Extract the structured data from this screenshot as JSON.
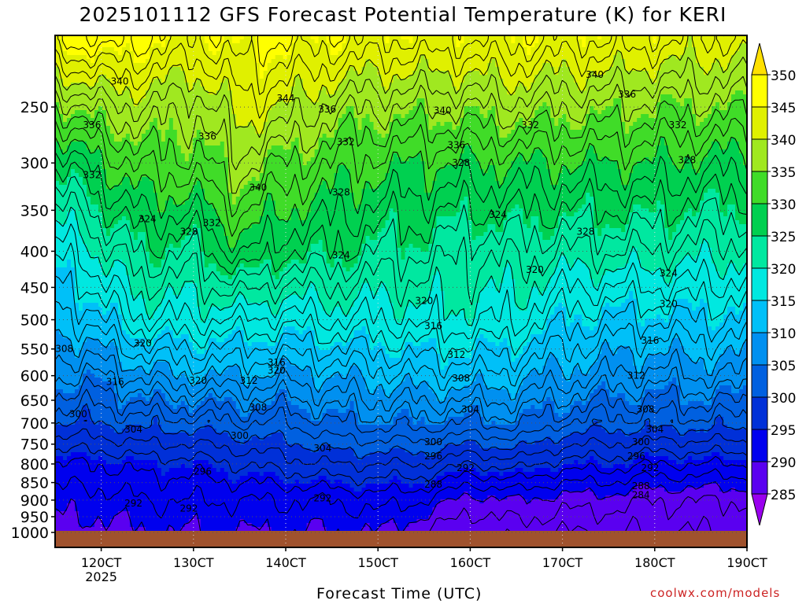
{
  "chart_data": {
    "type": "heatmap",
    "title": "2025101112 GFS Forecast Potential Temperature (K) for KERI",
    "xlabel": "Forecast Time (UTC)",
    "ylabel": "",
    "y_scale": "log",
    "y_reversed": true,
    "ylim": [
      1000,
      200
    ],
    "xlim": [
      11.5,
      19.0
    ],
    "x_tick_labels": [
      "120CT",
      "130CT",
      "140CT",
      "150CT",
      "160CT",
      "170CT",
      "180CT",
      "190CT"
    ],
    "x_tick_values": [
      12,
      13,
      14,
      15,
      16,
      17,
      18,
      19
    ],
    "x_sub_label": "2025",
    "y_ticks": [
      250,
      300,
      350,
      400,
      450,
      500,
      550,
      600,
      650,
      700,
      750,
      800,
      850,
      900,
      950,
      1000
    ],
    "x_grid": true,
    "y_grid": true,
    "colorbar": {
      "levels": [
        285,
        290,
        295,
        300,
        305,
        310,
        315,
        320,
        325,
        330,
        335,
        340,
        345,
        350
      ],
      "colors": [
        "#9a00ef",
        "#5a00f0",
        "#0000ee",
        "#0030d8",
        "#0060e0",
        "#0090f0",
        "#00c0f8",
        "#00e8e0",
        "#00e8a0",
        "#00d050",
        "#40dc28",
        "#a0e820",
        "#e0f000",
        "#ffff00",
        "#ffe000"
      ]
    },
    "ground_color": "#a0522d",
    "theta_profiles": [
      {
        "t": 11.5,
        "p": [
          1000,
          900,
          800,
          700,
          600,
          500,
          400,
          300,
          250,
          200
        ],
        "theta": [
          289,
          291,
          294,
          300,
          306,
          311,
          317,
          326,
          334,
          346
        ]
      },
      {
        "t": 11.8,
        "p": [
          1000,
          900,
          800,
          700,
          600,
          500,
          400,
          300,
          250,
          200
        ],
        "theta": [
          289,
          291,
          294,
          300,
          306,
          312,
          318,
          328,
          336,
          347
        ]
      },
      {
        "t": 12.0,
        "p": [
          1000,
          900,
          800,
          700,
          600,
          500,
          400,
          300,
          250,
          200
        ],
        "theta": [
          289,
          291,
          294,
          300,
          306,
          314,
          321,
          330,
          337,
          348
        ]
      },
      {
        "t": 12.5,
        "p": [
          1000,
          900,
          800,
          700,
          600,
          500,
          400,
          300,
          250,
          200
        ],
        "theta": [
          290,
          292,
          295,
          301,
          309,
          318,
          325,
          333,
          338,
          346
        ]
      },
      {
        "t": 13.0,
        "p": [
          1000,
          900,
          800,
          700,
          600,
          500,
          400,
          300,
          250,
          200
        ],
        "theta": [
          290,
          292,
          295,
          301,
          310,
          318,
          324,
          333,
          336,
          344
        ]
      },
      {
        "t": 13.5,
        "p": [
          1000,
          900,
          800,
          700,
          600,
          500,
          400,
          300,
          250,
          200
        ],
        "theta": [
          290,
          292,
          296,
          302,
          310,
          318,
          329,
          337,
          341,
          346
        ]
      },
      {
        "t": 14.0,
        "p": [
          1000,
          900,
          800,
          700,
          600,
          500,
          400,
          300,
          250,
          200
        ],
        "theta": [
          290,
          292,
          297,
          302,
          309,
          317,
          326,
          334,
          340,
          346
        ]
      },
      {
        "t": 14.5,
        "p": [
          1000,
          900,
          800,
          700,
          600,
          500,
          400,
          300,
          250,
          200
        ],
        "theta": [
          290,
          292,
          298,
          304,
          310,
          318,
          326,
          332,
          337,
          345
        ]
      },
      {
        "t": 15.0,
        "p": [
          1000,
          900,
          800,
          700,
          600,
          500,
          400,
          300,
          250,
          200
        ],
        "theta": [
          290,
          293,
          298,
          305,
          311,
          318,
          324,
          331,
          336,
          344
        ]
      },
      {
        "t": 15.5,
        "p": [
          1000,
          900,
          800,
          700,
          600,
          500,
          400,
          300,
          250,
          200
        ],
        "theta": [
          288,
          292,
          298,
          305,
          312,
          319,
          324,
          330,
          336,
          344
        ]
      },
      {
        "t": 16.0,
        "p": [
          1000,
          900,
          800,
          700,
          600,
          500,
          400,
          300,
          250,
          200
        ],
        "theta": [
          286,
          289,
          296,
          304,
          312,
          319,
          322,
          330,
          336,
          344
        ]
      },
      {
        "t": 16.5,
        "p": [
          1000,
          900,
          800,
          700,
          600,
          500,
          400,
          300,
          250,
          200
        ],
        "theta": [
          287,
          290,
          297,
          305,
          311,
          318,
          323,
          330,
          337,
          345
        ]
      },
      {
        "t": 17.0,
        "p": [
          1000,
          900,
          800,
          700,
          600,
          500,
          400,
          300,
          250,
          200
        ],
        "theta": [
          286,
          289,
          295,
          302,
          309,
          315,
          322,
          330,
          336,
          344
        ]
      },
      {
        "t": 17.5,
        "p": [
          1000,
          900,
          800,
          700,
          600,
          500,
          400,
          300,
          250,
          200
        ],
        "theta": [
          286,
          289,
          295,
          301,
          308,
          314,
          322,
          330,
          336,
          344
        ]
      },
      {
        "t": 18.0,
        "p": [
          1000,
          900,
          800,
          700,
          600,
          500,
          400,
          300,
          250,
          200
        ],
        "theta": [
          286,
          288,
          294,
          301,
          307,
          314,
          322,
          330,
          335,
          343
        ]
      },
      {
        "t": 18.5,
        "p": [
          1000,
          900,
          800,
          700,
          600,
          500,
          400,
          300,
          250,
          200
        ],
        "theta": [
          286,
          288,
          294,
          301,
          308,
          314,
          321,
          329,
          335,
          342
        ]
      },
      {
        "t": 19.0,
        "p": [
          1000,
          900,
          800,
          700,
          600,
          500,
          400,
          300,
          250,
          200
        ],
        "theta": [
          286,
          288,
          294,
          301,
          308,
          314,
          321,
          329,
          335,
          342
        ]
      }
    ],
    "contour_labels": [
      {
        "t": 12.2,
        "p": 230,
        "text": "340"
      },
      {
        "t": 11.9,
        "p": 265,
        "text": "336"
      },
      {
        "t": 11.9,
        "p": 312,
        "text": "332"
      },
      {
        "t": 12.5,
        "p": 360,
        "text": "324"
      },
      {
        "t": 12.95,
        "p": 375,
        "text": "328"
      },
      {
        "t": 13.2,
        "p": 365,
        "text": "332"
      },
      {
        "t": 13.15,
        "p": 275,
        "text": "336"
      },
      {
        "t": 13.7,
        "p": 325,
        "text": "340"
      },
      {
        "t": 14.0,
        "p": 243,
        "text": "344"
      },
      {
        "t": 14.45,
        "p": 252,
        "text": "336"
      },
      {
        "t": 14.65,
        "p": 280,
        "text": "332"
      },
      {
        "t": 14.6,
        "p": 330,
        "text": "328"
      },
      {
        "t": 14.6,
        "p": 405,
        "text": "324"
      },
      {
        "t": 12.45,
        "p": 540,
        "text": "320"
      },
      {
        "t": 11.6,
        "p": 550,
        "text": "308"
      },
      {
        "t": 12.15,
        "p": 612,
        "text": "316"
      },
      {
        "t": 11.75,
        "p": 680,
        "text": "300"
      },
      {
        "t": 12.35,
        "p": 715,
        "text": "304"
      },
      {
        "t": 13.05,
        "p": 610,
        "text": "320"
      },
      {
        "t": 13.9,
        "p": 590,
        "text": "320"
      },
      {
        "t": 13.9,
        "p": 575,
        "text": "316"
      },
      {
        "t": 13.6,
        "p": 610,
        "text": "312"
      },
      {
        "t": 13.7,
        "p": 665,
        "text": "308"
      },
      {
        "t": 13.5,
        "p": 730,
        "text": "300"
      },
      {
        "t": 14.4,
        "p": 760,
        "text": "304"
      },
      {
        "t": 13.1,
        "p": 820,
        "text": "296"
      },
      {
        "t": 12.35,
        "p": 910,
        "text": "292"
      },
      {
        "t": 12.95,
        "p": 925,
        "text": "292"
      },
      {
        "t": 14.4,
        "p": 895,
        "text": "292"
      },
      {
        "t": 15.5,
        "p": 470,
        "text": "320"
      },
      {
        "t": 15.6,
        "p": 510,
        "text": "316"
      },
      {
        "t": 15.85,
        "p": 560,
        "text": "312"
      },
      {
        "t": 15.9,
        "p": 605,
        "text": "308"
      },
      {
        "t": 16.0,
        "p": 670,
        "text": "304"
      },
      {
        "t": 15.6,
        "p": 745,
        "text": "300"
      },
      {
        "t": 15.6,
        "p": 780,
        "text": "296"
      },
      {
        "t": 15.95,
        "p": 810,
        "text": "292"
      },
      {
        "t": 15.6,
        "p": 855,
        "text": "288"
      },
      {
        "t": 15.7,
        "p": 253,
        "text": "340"
      },
      {
        "t": 15.85,
        "p": 283,
        "text": "336"
      },
      {
        "t": 16.65,
        "p": 265,
        "text": "332"
      },
      {
        "t": 15.9,
        "p": 300,
        "text": "328"
      },
      {
        "t": 16.3,
        "p": 355,
        "text": "324"
      },
      {
        "t": 16.7,
        "p": 425,
        "text": "320"
      },
      {
        "t": 17.35,
        "p": 225,
        "text": "340"
      },
      {
        "t": 17.7,
        "p": 240,
        "text": "336"
      },
      {
        "t": 18.25,
        "p": 265,
        "text": "332"
      },
      {
        "t": 18.35,
        "p": 297,
        "text": "328"
      },
      {
        "t": 17.25,
        "p": 375,
        "text": "328"
      },
      {
        "t": 18.15,
        "p": 430,
        "text": "324"
      },
      {
        "t": 18.15,
        "p": 475,
        "text": "320"
      },
      {
        "t": 17.95,
        "p": 535,
        "text": "316"
      },
      {
        "t": 17.8,
        "p": 600,
        "text": "312"
      },
      {
        "t": 17.9,
        "p": 670,
        "text": "308"
      },
      {
        "t": 18.0,
        "p": 715,
        "text": "304"
      },
      {
        "t": 17.85,
        "p": 745,
        "text": "300"
      },
      {
        "t": 17.8,
        "p": 780,
        "text": "296"
      },
      {
        "t": 17.95,
        "p": 810,
        "text": "292"
      },
      {
        "t": 17.85,
        "p": 860,
        "text": "288"
      },
      {
        "t": 17.85,
        "p": 885,
        "text": "284"
      }
    ]
  },
  "credit": "coolwx.com/models"
}
